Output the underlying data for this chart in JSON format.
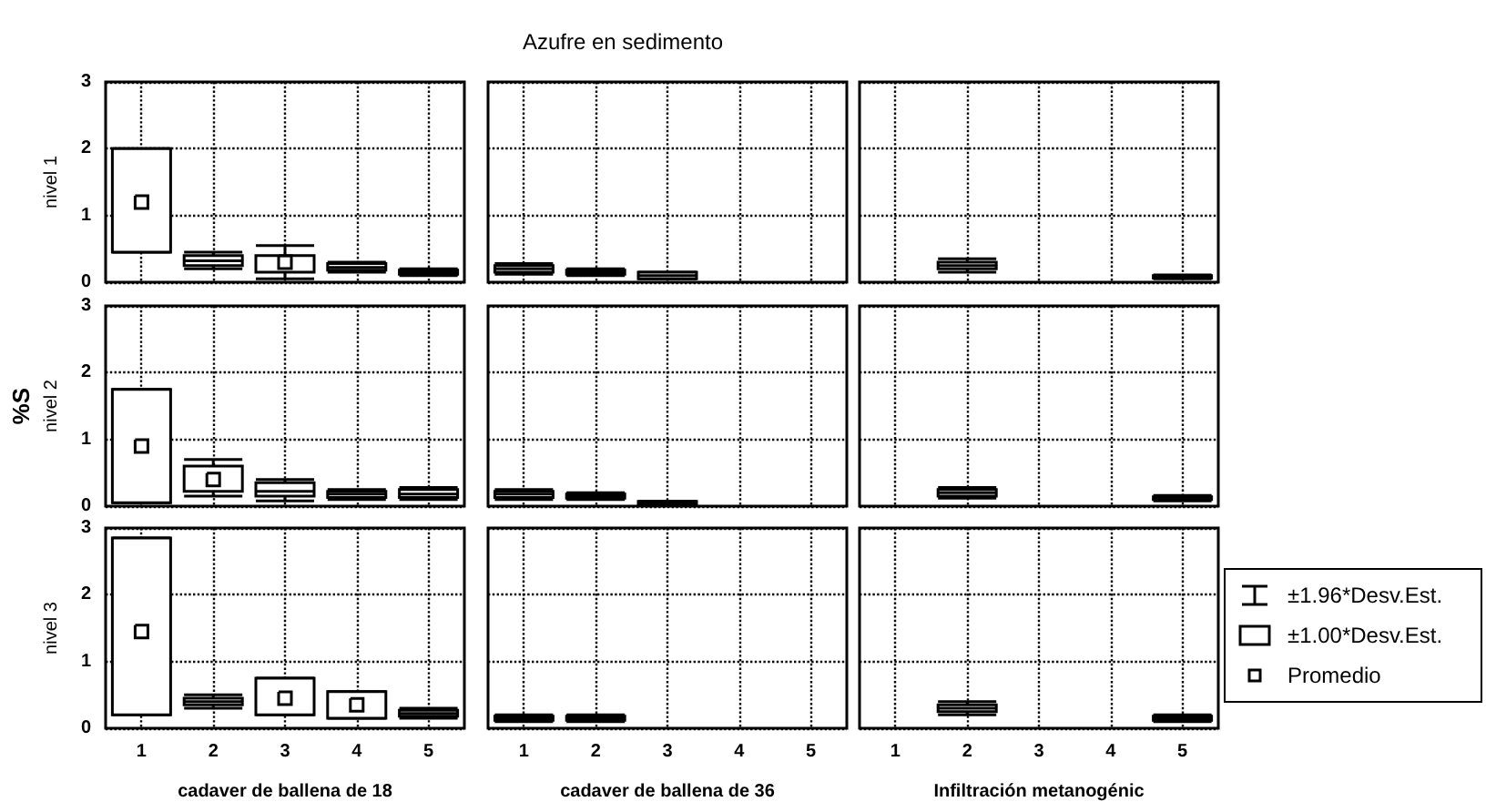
{
  "chart_data": [
    {
      "type": "box",
      "ylabel": "nivel 1",
      "categories": [
        "1",
        "2",
        "3",
        "4",
        "5"
      ],
      "ylim": [
        0,
        3
      ],
      "yticks": [
        0,
        1,
        2,
        3
      ],
      "grid": true,
      "tick_labels": "y",
      "series": [
        {
          "color": "#000000",
          "boxes": [
            {
              "low": 0.45,
              "q1": 0.45,
              "median": 1.2,
              "q3": 2.0,
              "high": 2.0
            },
            {
              "low": 0.2,
              "q1": 0.25,
              "median": 0.32,
              "q3": 0.4,
              "high": 0.45
            },
            {
              "low": 0.05,
              "q1": 0.15,
              "median": 0.3,
              "q3": 0.4,
              "high": 0.55
            },
            {
              "low": 0.15,
              "q1": 0.18,
              "median": 0.22,
              "q3": 0.28,
              "high": 0.3
            },
            {
              "low": 0.1,
              "q1": 0.12,
              "median": 0.15,
              "q3": 0.18,
              "high": 0.2
            }
          ]
        }
      ]
    },
    {
      "type": "box",
      "title": "Azufre en sedimento",
      "categories": [
        "1",
        "2",
        "3",
        "4",
        "5"
      ],
      "ylim": [
        0,
        3
      ],
      "yticks": [
        0,
        1,
        2,
        3
      ],
      "grid": true,
      "tick_labels": false,
      "series": [
        {
          "color": "#000000",
          "boxes": [
            {
              "low": 0.12,
              "q1": 0.15,
              "median": 0.2,
              "q3": 0.25,
              "high": 0.28
            },
            {
              "low": 0.1,
              "q1": 0.12,
              "median": 0.15,
              "q3": 0.18,
              "high": 0.2
            },
            {
              "low": 0.05,
              "q1": 0.05,
              "median": 0.1,
              "q3": 0.15,
              "high": 0.15
            },
            null,
            null
          ]
        }
      ]
    },
    {
      "type": "box",
      "categories": [
        "1",
        "2",
        "3",
        "4",
        "5"
      ],
      "ylim": [
        0,
        3
      ],
      "yticks": [
        0,
        1,
        2,
        3
      ],
      "grid": true,
      "tick_labels": false,
      "series": [
        {
          "color": "#000000",
          "boxes": [
            null,
            {
              "low": 0.15,
              "q1": 0.2,
              "median": 0.25,
              "q3": 0.3,
              "high": 0.35
            },
            null,
            null,
            {
              "low": 0.05,
              "q1": 0.06,
              "median": 0.08,
              "q3": 0.1,
              "high": 0.11
            }
          ]
        }
      ]
    },
    {
      "type": "box",
      "ylabel": "nivel 2",
      "annotations": [
        "%S"
      ],
      "categories": [
        "1",
        "2",
        "3",
        "4",
        "5"
      ],
      "ylim": [
        0,
        3
      ],
      "yticks": [
        0,
        1,
        2,
        3
      ],
      "grid": true,
      "tick_labels": "y",
      "series": [
        {
          "color": "#000000",
          "boxes": [
            {
              "low": 0.05,
              "q1": 0.05,
              "median": 0.9,
              "q3": 1.75,
              "high": 1.75
            },
            {
              "low": 0.15,
              "q1": 0.22,
              "median": 0.4,
              "q3": 0.6,
              "high": 0.7
            },
            {
              "low": 0.08,
              "q1": 0.15,
              "median": 0.22,
              "q3": 0.35,
              "high": 0.4
            },
            {
              "low": 0.1,
              "q1": 0.13,
              "median": 0.18,
              "q3": 0.22,
              "high": 0.25
            },
            {
              "low": 0.1,
              "q1": 0.13,
              "median": 0.18,
              "q3": 0.25,
              "high": 0.28
            }
          ]
        }
      ]
    },
    {
      "type": "box",
      "categories": [
        "1",
        "2",
        "3",
        "4",
        "5"
      ],
      "ylim": [
        0,
        3
      ],
      "yticks": [
        0,
        1,
        2,
        3
      ],
      "grid": true,
      "tick_labels": false,
      "series": [
        {
          "color": "#000000",
          "boxes": [
            {
              "low": 0.1,
              "q1": 0.13,
              "median": 0.18,
              "q3": 0.22,
              "high": 0.25
            },
            {
              "low": 0.1,
              "q1": 0.12,
              "median": 0.15,
              "q3": 0.18,
              "high": 0.2
            },
            {
              "low": 0.03,
              "q1": 0.03,
              "median": 0.05,
              "q3": 0.07,
              "high": 0.07
            },
            null,
            null
          ]
        }
      ]
    },
    {
      "type": "box",
      "categories": [
        "1",
        "2",
        "3",
        "4",
        "5"
      ],
      "ylim": [
        0,
        3
      ],
      "yticks": [
        0,
        1,
        2,
        3
      ],
      "grid": true,
      "tick_labels": false,
      "series": [
        {
          "color": "#000000",
          "boxes": [
            null,
            {
              "low": 0.12,
              "q1": 0.15,
              "median": 0.2,
              "q3": 0.25,
              "high": 0.28
            },
            null,
            null,
            {
              "low": 0.08,
              "q1": 0.1,
              "median": 0.12,
              "q3": 0.14,
              "high": 0.16
            }
          ]
        }
      ]
    },
    {
      "type": "box",
      "ylabel": "nivel 3",
      "xlabel": "cadaver de ballena de 18",
      "categories": [
        "1",
        "2",
        "3",
        "4",
        "5"
      ],
      "ylim": [
        0,
        3
      ],
      "yticks": [
        0,
        1,
        2,
        3
      ],
      "grid": true,
      "series": [
        {
          "color": "#000000",
          "boxes": [
            {
              "low": 0.2,
              "q1": 0.2,
              "median": 1.45,
              "q3": 2.85,
              "high": 2.85
            },
            {
              "low": 0.3,
              "q1": 0.35,
              "median": 0.4,
              "q3": 0.45,
              "high": 0.5
            },
            {
              "low": 0.2,
              "q1": 0.2,
              "median": 0.45,
              "q3": 0.75,
              "high": 0.75
            },
            {
              "low": 0.15,
              "q1": 0.15,
              "median": 0.35,
              "q3": 0.55,
              "high": 0.55
            },
            {
              "low": 0.15,
              "q1": 0.18,
              "median": 0.22,
              "q3": 0.27,
              "high": 0.3
            }
          ]
        }
      ]
    },
    {
      "type": "box",
      "xlabel": "cadaver de ballena de 36",
      "categories": [
        "1",
        "2",
        "3",
        "4",
        "5"
      ],
      "ylim": [
        0,
        3
      ],
      "yticks": [
        0,
        1,
        2,
        3
      ],
      "grid": true,
      "tick_labels": "x",
      "series": [
        {
          "color": "#000000",
          "boxes": [
            {
              "low": 0.1,
              "q1": 0.12,
              "median": 0.15,
              "q3": 0.18,
              "high": 0.2
            },
            {
              "low": 0.1,
              "q1": 0.12,
              "median": 0.15,
              "q3": 0.18,
              "high": 0.2
            },
            null,
            null,
            null
          ]
        }
      ]
    },
    {
      "type": "box",
      "xlabel": "Infiltración metanogénic",
      "annotations": [
        "±1.96*Desv.Est.",
        "±1.00*Desv.Est.",
        "Promedio"
      ],
      "categories": [
        "1",
        "2",
        "3",
        "4",
        "5"
      ],
      "ylim": [
        0,
        3
      ],
      "yticks": [
        0,
        1,
        2,
        3
      ],
      "grid": true,
      "tick_labels": "x",
      "series": [
        {
          "color": "#000000",
          "boxes": [
            null,
            {
              "low": 0.2,
              "q1": 0.25,
              "median": 0.3,
              "q3": 0.35,
              "high": 0.4
            },
            null,
            null,
            {
              "low": 0.1,
              "q1": 0.12,
              "median": 0.15,
              "q3": 0.18,
              "high": 0.2
            }
          ]
        }
      ]
    }
  ]
}
